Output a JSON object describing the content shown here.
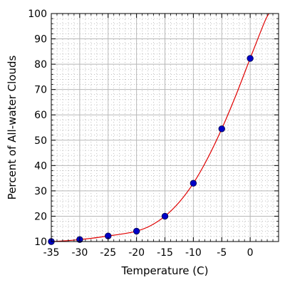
{
  "chart_data": {
    "type": "scatter",
    "title": "",
    "xlabel": "Temperature (C)",
    "ylabel": "Percent of All-water Clouds",
    "xlim": [
      -35,
      5
    ],
    "ylim": [
      10,
      100
    ],
    "x_ticks": [
      -35,
      -30,
      -25,
      -20,
      -15,
      -10,
      -5,
      0
    ],
    "y_ticks": [
      10,
      20,
      30,
      40,
      50,
      60,
      70,
      80,
      90,
      100
    ],
    "x_tick_labels": [
      "-35",
      "-30",
      "-25",
      "-20",
      "-15",
      "-10",
      "-5",
      "0"
    ],
    "y_tick_labels": [
      "10",
      "20",
      "30",
      "40",
      "50",
      "60",
      "70",
      "80",
      "90",
      "100"
    ],
    "grid": "major solid, minor dotted",
    "legend": "none",
    "series": [
      {
        "kind": "points",
        "color": "#0000c8",
        "x": [
          -35,
          -30,
          -25,
          -20,
          -15,
          -10,
          -5,
          0
        ],
        "y": [
          10.0,
          10.8,
          12.2,
          14.1,
          20.0,
          33.0,
          54.5,
          82.3
        ]
      },
      {
        "kind": "fit-line",
        "color": "#e00000",
        "x": [
          -35,
          -32.5,
          -30,
          -27.5,
          -25,
          -22.5,
          -20,
          -17.5,
          -15,
          -12.5,
          -10,
          -7.5,
          -5,
          -2.5,
          0,
          2.5,
          3.3
        ],
        "y": [
          10.0,
          10.3,
          10.8,
          11.4,
          12.2,
          13.0,
          14.1,
          16.3,
          20.0,
          25.5,
          33.0,
          42.8,
          54.5,
          67.8,
          82.3,
          96.5,
          100
        ]
      }
    ]
  }
}
